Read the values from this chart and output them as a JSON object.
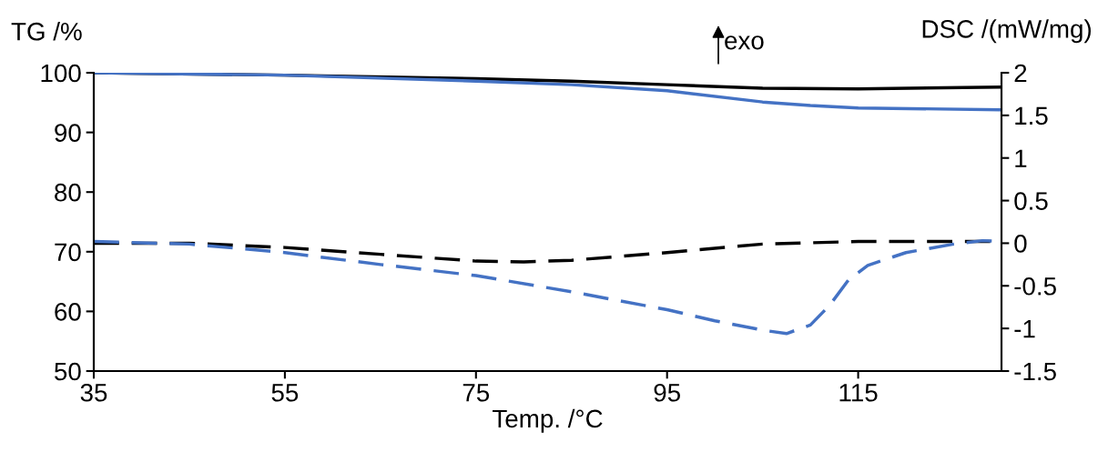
{
  "chart_data": {
    "type": "line",
    "xlabel": "Temp. /°C",
    "ylabel": "TG /%",
    "y2label": "DSC /(mW/mg)",
    "xlim": [
      35,
      130
    ],
    "xticks": [
      35,
      55,
      75,
      95,
      115
    ],
    "ylim": [
      50,
      100
    ],
    "yticks": [
      50,
      60,
      70,
      80,
      90,
      100
    ],
    "y2lim": [
      -1.5,
      2
    ],
    "y2ticks": [
      -1.5,
      -1,
      -0.5,
      0,
      0.5,
      1,
      1.5,
      2
    ],
    "grid": false,
    "legend": false,
    "marker": "none",
    "annotations": [
      "exo"
    ],
    "series": [
      {
        "color": "#000000",
        "line_style": "solid",
        "x": [
          35,
          55,
          75,
          85,
          95,
          105,
          115,
          130
        ],
        "values": [
          100,
          99.6,
          99,
          98.6,
          98,
          97.4,
          97.3,
          97.6
        ]
      },
      {
        "color": "#4472c4",
        "line_style": "solid",
        "x": [
          35,
          55,
          75,
          85,
          95,
          105,
          110,
          115,
          130
        ],
        "values": [
          100,
          99.6,
          98.6,
          98,
          97,
          95.1,
          94.5,
          94.1,
          93.8
        ]
      },
      {
        "color": "#000000",
        "line_style": "dashed",
        "axis": "y2",
        "x": [
          35,
          45,
          55,
          65,
          75,
          80,
          85,
          95,
          105,
          115,
          130
        ],
        "values": [
          0,
          0,
          -0.05,
          -0.13,
          -0.21,
          -0.22,
          -0.2,
          -0.11,
          -0.01,
          0.02,
          0.02
        ]
      },
      {
        "color": "#4472c4",
        "line_style": "dashed",
        "axis": "y2",
        "x": [
          35,
          45,
          55,
          65,
          75,
          85,
          95,
          100,
          105,
          107.5,
          110,
          112,
          114,
          116,
          120,
          125,
          128,
          130
        ],
        "values": [
          0.02,
          -0.01,
          -0.11,
          -0.25,
          -0.38,
          -0.57,
          -0.78,
          -0.91,
          -1.02,
          -1.06,
          -0.96,
          -0.73,
          -0.43,
          -0.26,
          -0.11,
          -0.01,
          0.03,
          0.02
        ]
      }
    ]
  }
}
